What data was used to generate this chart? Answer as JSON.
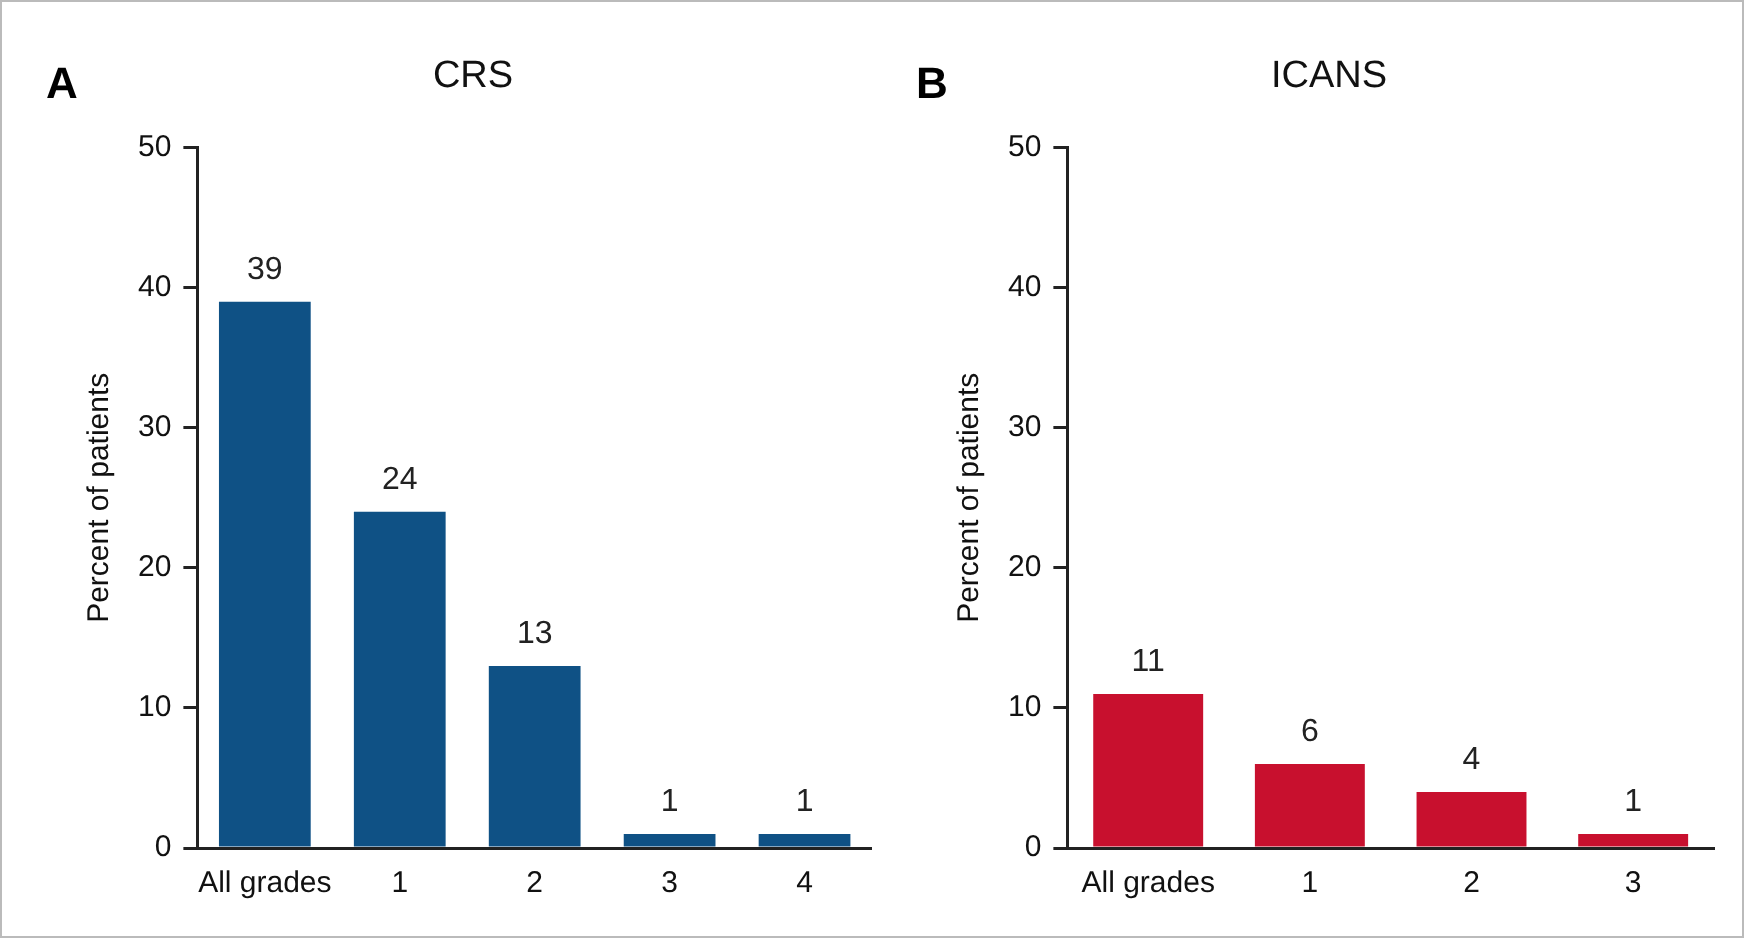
{
  "chart_data": [
    {
      "type": "bar",
      "title": "CRS",
      "ylabel": "Percent of patients",
      "annotations": [
        "A"
      ],
      "categories": [
        "All grades",
        "1",
        "2",
        "3",
        "4"
      ],
      "values": [
        39,
        24,
        13,
        1,
        1
      ],
      "color": "#0f5185",
      "ylim": [
        0,
        50
      ],
      "yticks": [
        0,
        10,
        20,
        30,
        40,
        50
      ],
      "grid": false,
      "legend": false,
      "data_labels": true
    },
    {
      "type": "bar",
      "title": "ICANS",
      "ylabel": "Percent of patients",
      "annotations": [
        "B"
      ],
      "categories": [
        "All grades",
        "1",
        "2",
        "3"
      ],
      "values": [
        11,
        6,
        4,
        1
      ],
      "color": "#c8102e",
      "ylim": [
        0,
        50
      ],
      "yticks": [
        0,
        10,
        20,
        30,
        40,
        50
      ],
      "grid": false,
      "legend": false,
      "data_labels": true
    }
  ]
}
